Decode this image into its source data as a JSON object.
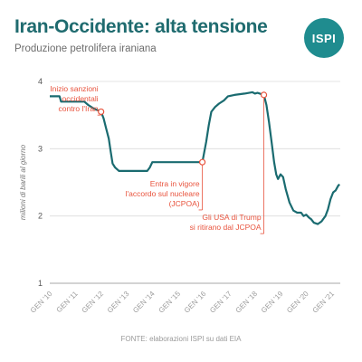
{
  "header": {
    "title": "Iran-Occidente: alta tensione",
    "subtitle": "Produzione petrolifera iraniana",
    "logo_text": "ISPI"
  },
  "source": "FONTE: elaborazioni ISPI su dati EIA",
  "colors": {
    "line": "#1a6b70",
    "annotation": "#e8533d",
    "title": "#1f6b6f",
    "logo": "#1f8c8f"
  },
  "chart_data": {
    "type": "line",
    "ylabel": "milioni di barili al giorno",
    "ylim": [
      1,
      4
    ],
    "yticks": [
      1,
      2,
      3,
      4
    ],
    "xlim": [
      2010.0,
      2021.33
    ],
    "xticks": [
      {
        "x": 2010,
        "label": "GEN '10"
      },
      {
        "x": 2011,
        "label": "GEN '11"
      },
      {
        "x": 2012,
        "label": "GEN '12"
      },
      {
        "x": 2013,
        "label": "GEN '13"
      },
      {
        "x": 2014,
        "label": "GEN '14"
      },
      {
        "x": 2015,
        "label": "GEN '15"
      },
      {
        "x": 2016,
        "label": "GEN '16"
      },
      {
        "x": 2017,
        "label": "GEN '17"
      },
      {
        "x": 2018,
        "label": "GEN '18"
      },
      {
        "x": 2019,
        "label": "GEN '19"
      },
      {
        "x": 2020,
        "label": "GEN '20"
      },
      {
        "x": 2021,
        "label": "GEN '21"
      }
    ],
    "grid": true,
    "series": [
      {
        "points": [
          [
            2010.0,
            3.78
          ],
          [
            2010.38,
            3.78
          ],
          [
            2010.44,
            3.7
          ],
          [
            2011.0,
            3.7
          ],
          [
            2011.35,
            3.7
          ],
          [
            2011.5,
            3.65
          ],
          [
            2011.7,
            3.6
          ],
          [
            2012.0,
            3.55
          ],
          [
            2012.1,
            3.45
          ],
          [
            2012.2,
            3.3
          ],
          [
            2012.3,
            3.15
          ],
          [
            2012.38,
            2.95
          ],
          [
            2012.45,
            2.78
          ],
          [
            2012.55,
            2.72
          ],
          [
            2012.7,
            2.67
          ],
          [
            2013.0,
            2.67
          ],
          [
            2013.5,
            2.67
          ],
          [
            2013.8,
            2.67
          ],
          [
            2013.9,
            2.72
          ],
          [
            2014.0,
            2.8
          ],
          [
            2014.5,
            2.8
          ],
          [
            2015.0,
            2.8
          ],
          [
            2015.5,
            2.8
          ],
          [
            2015.95,
            2.8
          ],
          [
            2016.1,
            3.1
          ],
          [
            2016.2,
            3.35
          ],
          [
            2016.3,
            3.55
          ],
          [
            2016.45,
            3.62
          ],
          [
            2016.6,
            3.67
          ],
          [
            2016.8,
            3.72
          ],
          [
            2016.95,
            3.78
          ],
          [
            2017.2,
            3.8
          ],
          [
            2017.6,
            3.82
          ],
          [
            2017.9,
            3.84
          ],
          [
            2018.0,
            3.82
          ],
          [
            2018.1,
            3.83
          ],
          [
            2018.35,
            3.8
          ],
          [
            2018.45,
            3.65
          ],
          [
            2018.55,
            3.4
          ],
          [
            2018.65,
            3.1
          ],
          [
            2018.75,
            2.8
          ],
          [
            2018.83,
            2.62
          ],
          [
            2018.9,
            2.55
          ],
          [
            2019.0,
            2.62
          ],
          [
            2019.1,
            2.58
          ],
          [
            2019.2,
            2.4
          ],
          [
            2019.35,
            2.2
          ],
          [
            2019.5,
            2.08
          ],
          [
            2019.65,
            2.05
          ],
          [
            2019.8,
            2.05
          ],
          [
            2019.9,
            2.0
          ],
          [
            2020.0,
            2.02
          ],
          [
            2020.1,
            1.98
          ],
          [
            2020.2,
            1.95
          ],
          [
            2020.3,
            1.9
          ],
          [
            2020.45,
            1.88
          ],
          [
            2020.6,
            1.92
          ],
          [
            2020.75,
            2.0
          ],
          [
            2020.85,
            2.1
          ],
          [
            2020.95,
            2.25
          ],
          [
            2021.05,
            2.35
          ],
          [
            2021.15,
            2.38
          ],
          [
            2021.25,
            2.45
          ],
          [
            2021.3,
            2.47
          ]
        ]
      }
    ],
    "annotations": [
      {
        "x": 2012.0,
        "y": 3.55,
        "lines": [
          "Inizio sanzioni",
          "occidentali",
          "contro l'Iran"
        ],
        "text_y": 3.85,
        "anchor": "end"
      },
      {
        "x": 2015.95,
        "y": 2.8,
        "lines": [
          "Entra in vigore",
          "l'accordo sul nucleare",
          "(JCPOA)"
        ],
        "text_y": 2.44,
        "anchor": "end"
      },
      {
        "x": 2018.35,
        "y": 3.8,
        "lines": [
          "Gli USA di Trump",
          "si ritirano dal JCPOA"
        ],
        "text_y": 1.94,
        "anchor": "end"
      }
    ]
  }
}
